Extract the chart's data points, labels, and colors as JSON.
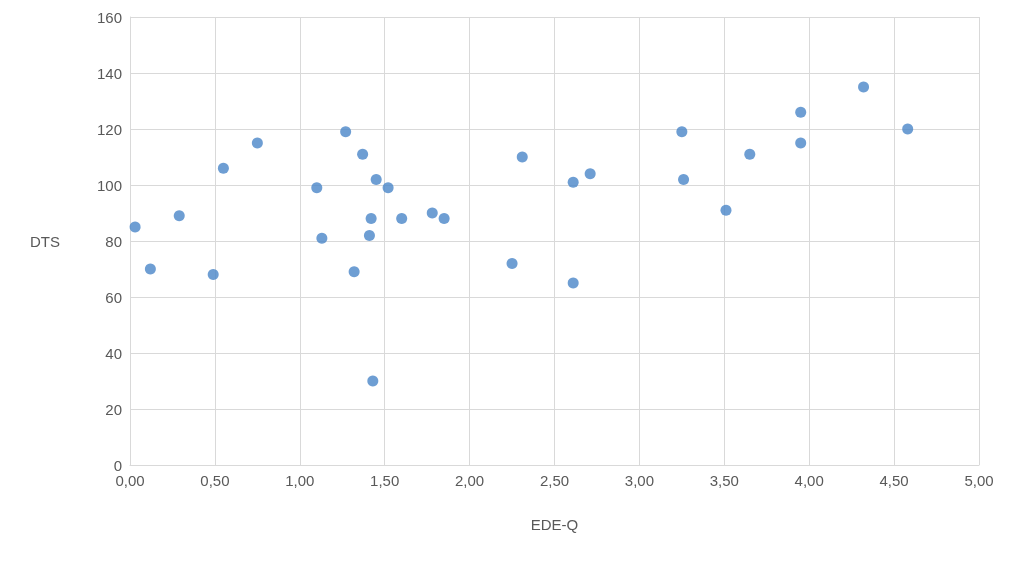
{
  "chart_data": {
    "type": "scatter",
    "xlabel": "EDE-Q",
    "ylabel": "DTS",
    "x": [
      0.03,
      0.12,
      0.29,
      0.49,
      0.55,
      0.75,
      1.1,
      1.13,
      1.27,
      1.32,
      1.37,
      1.41,
      1.42,
      1.43,
      1.45,
      1.52,
      1.6,
      1.78,
      1.85,
      2.25,
      2.31,
      2.61,
      2.71,
      2.61,
      3.25,
      3.26,
      3.51,
      3.65,
      3.95,
      3.95,
      4.32,
      4.58
    ],
    "values": [
      85,
      70,
      89,
      68,
      106,
      115,
      99,
      81,
      119,
      69,
      111,
      82,
      88,
      30,
      102,
      99,
      88,
      90,
      88,
      72,
      110,
      101,
      104,
      65,
      119,
      102,
      91,
      111,
      126,
      115,
      135,
      120
    ],
    "color": "#4a86c8",
    "marker": "circle",
    "grid": true,
    "xlim": [
      0,
      5
    ],
    "xticks": [
      {
        "value": 0,
        "label": "0,00"
      },
      {
        "value": 0.5,
        "label": "0,50"
      },
      {
        "value": 1,
        "label": "1,00"
      },
      {
        "value": 1.5,
        "label": "1,50"
      },
      {
        "value": 2,
        "label": "2,00"
      },
      {
        "value": 2.5,
        "label": "2,50"
      },
      {
        "value": 3,
        "label": "3,00"
      },
      {
        "value": 3.5,
        "label": "3,50"
      },
      {
        "value": 4,
        "label": "4,00"
      },
      {
        "value": 4.5,
        "label": "4,50"
      },
      {
        "value": 5,
        "label": "5,00"
      }
    ],
    "ylim": [
      0,
      160
    ],
    "yticks": [
      0,
      20,
      40,
      60,
      80,
      100,
      120,
      140,
      160
    ]
  }
}
